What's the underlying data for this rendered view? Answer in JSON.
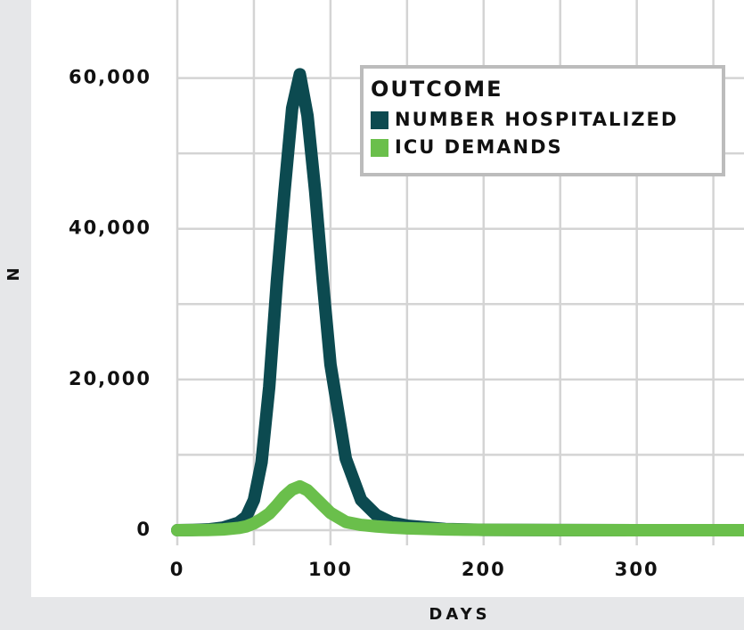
{
  "chart_data": {
    "type": "line",
    "xlabel": "DAYS",
    "ylabel": "N",
    "legend_title": "OUTCOME",
    "x": [
      0,
      10,
      20,
      30,
      40,
      45,
      50,
      55,
      60,
      65,
      70,
      75,
      80,
      85,
      90,
      95,
      100,
      110,
      120,
      130,
      140,
      150,
      175,
      200,
      250,
      300,
      370
    ],
    "series": [
      {
        "name": "NUMBER HOSPITALIZED",
        "color": "#0c4a50",
        "values": [
          0,
          30,
          100,
          350,
          1000,
          1800,
          4000,
          9000,
          19000,
          33000,
          45000,
          56000,
          60500,
          55000,
          45000,
          33000,
          22000,
          9500,
          4000,
          2000,
          1000,
          600,
          150,
          50,
          10,
          0,
          0
        ]
      },
      {
        "name": "ICU DEMANDS",
        "color": "#6abf4b",
        "values": [
          0,
          10,
          30,
          100,
          300,
          500,
          900,
          1500,
          2200,
          3300,
          4500,
          5400,
          5800,
          5300,
          4300,
          3300,
          2300,
          1100,
          700,
          500,
          350,
          250,
          100,
          50,
          10,
          0,
          0
        ]
      }
    ],
    "xlim": [
      0,
      370
    ],
    "ylim": [
      0,
      70000
    ],
    "xticks": [
      0,
      100,
      200,
      300
    ],
    "yticks": [
      0,
      {
        "value": 20000,
        "label": "20,000"
      },
      {
        "value": 40000,
        "label": "40,000"
      },
      {
        "value": 60000,
        "label": "60,000"
      }
    ],
    "xminor": [
      50,
      150,
      250,
      350
    ],
    "yminor": [
      10000,
      30000,
      50000
    ],
    "grid": true
  }
}
